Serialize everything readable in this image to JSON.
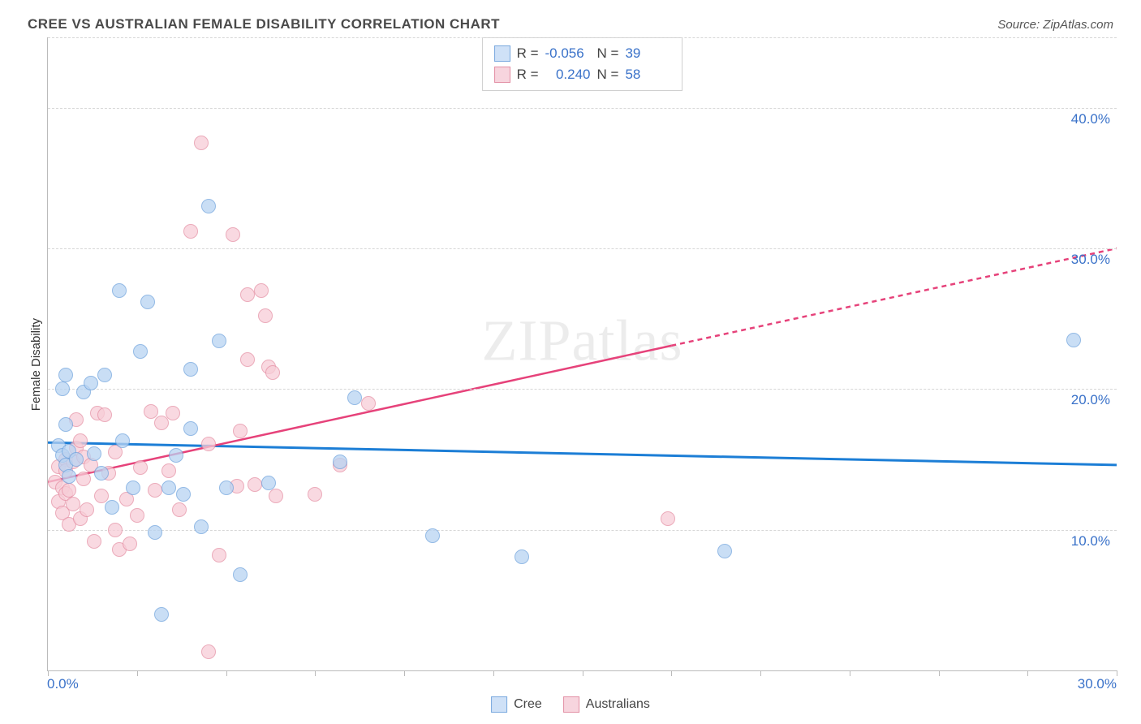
{
  "title": "CREE VS AUSTRALIAN FEMALE DISABILITY CORRELATION CHART",
  "source_prefix": "Source: ",
  "source_name": "ZipAtlas.com",
  "ylabel": "Female Disability",
  "watermark": "ZIPatlas",
  "x": {
    "min": 0,
    "max": 30,
    "labels": [
      "0.0%",
      "30.0%"
    ],
    "tick_positions": [
      0,
      2.5,
      5,
      7.5,
      10,
      12.5,
      15,
      17.5,
      20,
      22.5,
      25,
      27.5,
      30
    ]
  },
  "y": {
    "min": 0,
    "max": 45,
    "grid": [
      10,
      20,
      30,
      40
    ],
    "labels": [
      "10.0%",
      "20.0%",
      "30.0%",
      "40.0%"
    ]
  },
  "series": {
    "cree": {
      "label": "Cree",
      "fill": "#b8d3f2",
      "stroke": "#6fa3dd",
      "swatch_fill": "#cfe1f7",
      "swatch_stroke": "#7aa9de",
      "R": "-0.056",
      "N": "39",
      "trend": {
        "color": "#1c7ed6",
        "width": 3,
        "y_at_x0": 16.2,
        "y_at_xmax": 14.6,
        "dashed_from_x": null
      },
      "points": [
        [
          0.3,
          16.0
        ],
        [
          0.4,
          20.0
        ],
        [
          0.4,
          15.3
        ],
        [
          0.5,
          14.6
        ],
        [
          0.5,
          17.5
        ],
        [
          0.5,
          21.0
        ],
        [
          0.6,
          15.6
        ],
        [
          0.6,
          13.8
        ],
        [
          1.0,
          19.8
        ],
        [
          1.2,
          20.4
        ],
        [
          1.3,
          15.4
        ],
        [
          1.5,
          14.0
        ],
        [
          1.6,
          21.0
        ],
        [
          1.8,
          11.6
        ],
        [
          2.0,
          27.0
        ],
        [
          2.1,
          16.3
        ],
        [
          2.4,
          13.0
        ],
        [
          2.6,
          22.7
        ],
        [
          2.8,
          26.2
        ],
        [
          3.0,
          9.8
        ],
        [
          3.2,
          4.0
        ],
        [
          3.4,
          13.0
        ],
        [
          3.6,
          15.3
        ],
        [
          3.8,
          12.5
        ],
        [
          4.0,
          21.4
        ],
        [
          4.0,
          17.2
        ],
        [
          4.3,
          10.2
        ],
        [
          4.5,
          33.0
        ],
        [
          4.8,
          23.4
        ],
        [
          5.0,
          13.0
        ],
        [
          5.4,
          6.8
        ],
        [
          6.2,
          13.3
        ],
        [
          8.6,
          19.4
        ],
        [
          8.2,
          14.8
        ],
        [
          10.8,
          9.6
        ],
        [
          13.3,
          8.1
        ],
        [
          19.0,
          8.5
        ],
        [
          28.8,
          23.5
        ],
        [
          0.8,
          15.0
        ]
      ]
    },
    "aus": {
      "label": "Australians",
      "fill": "#f7cdd7",
      "stroke": "#e58fa4",
      "swatch_fill": "#f7d5de",
      "swatch_stroke": "#e290a5",
      "R": "0.240",
      "N": "58",
      "trend": {
        "color": "#e6427a",
        "width": 2.5,
        "y_at_x0": 13.4,
        "y_at_xmax": 30.0,
        "dashed_from_x": 17.5
      },
      "points": [
        [
          0.2,
          13.4
        ],
        [
          0.3,
          12.0
        ],
        [
          0.3,
          14.5
        ],
        [
          0.4,
          11.2
        ],
        [
          0.4,
          13.0
        ],
        [
          0.5,
          15.0
        ],
        [
          0.5,
          12.6
        ],
        [
          0.5,
          14.2
        ],
        [
          0.6,
          10.4
        ],
        [
          0.6,
          12.8
        ],
        [
          0.7,
          11.8
        ],
        [
          0.7,
          14.8
        ],
        [
          0.8,
          15.8
        ],
        [
          0.8,
          17.8
        ],
        [
          0.9,
          16.3
        ],
        [
          0.9,
          10.8
        ],
        [
          1.0,
          13.6
        ],
        [
          1.0,
          15.2
        ],
        [
          1.1,
          11.4
        ],
        [
          1.2,
          14.6
        ],
        [
          1.3,
          9.2
        ],
        [
          1.4,
          18.3
        ],
        [
          1.5,
          12.4
        ],
        [
          1.6,
          18.2
        ],
        [
          1.7,
          14.0
        ],
        [
          1.9,
          10.0
        ],
        [
          1.9,
          15.5
        ],
        [
          2.0,
          8.6
        ],
        [
          2.2,
          12.2
        ],
        [
          2.3,
          9.0
        ],
        [
          2.5,
          11.0
        ],
        [
          2.6,
          14.4
        ],
        [
          2.9,
          18.4
        ],
        [
          3.0,
          12.8
        ],
        [
          3.2,
          17.6
        ],
        [
          3.4,
          14.2
        ],
        [
          3.5,
          18.3
        ],
        [
          3.7,
          11.4
        ],
        [
          4.0,
          31.2
        ],
        [
          4.3,
          37.5
        ],
        [
          4.5,
          16.1
        ],
        [
          4.5,
          1.3
        ],
        [
          4.8,
          8.2
        ],
        [
          5.2,
          31.0
        ],
        [
          5.3,
          13.1
        ],
        [
          5.4,
          17.0
        ],
        [
          5.6,
          22.1
        ],
        [
          5.6,
          26.7
        ],
        [
          5.8,
          13.2
        ],
        [
          6.0,
          27.0
        ],
        [
          6.1,
          25.2
        ],
        [
          6.2,
          21.6
        ],
        [
          6.3,
          21.2
        ],
        [
          6.4,
          12.4
        ],
        [
          7.5,
          12.5
        ],
        [
          8.2,
          14.6
        ],
        [
          9.0,
          19.0
        ],
        [
          17.4,
          10.8
        ]
      ]
    }
  },
  "point_radius": 8,
  "colors": {
    "grid": "#d7d7d7",
    "axis": "#bbbbbb",
    "tick_text": "#3a72c9",
    "bg": "#ffffff"
  }
}
